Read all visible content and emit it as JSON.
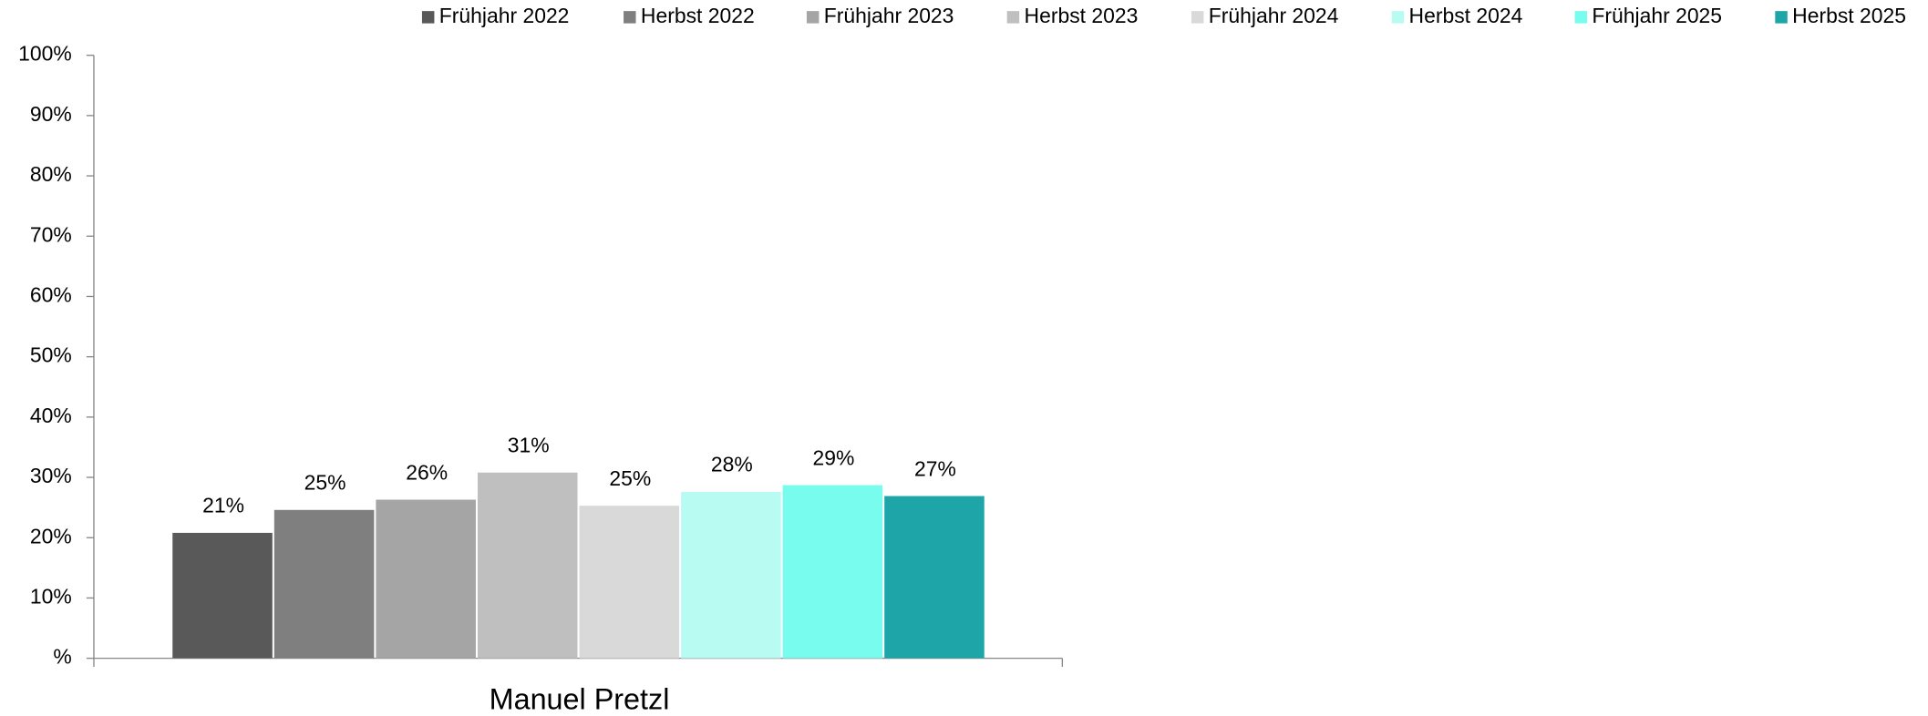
{
  "chart_data": {
    "type": "bar",
    "categories": [
      "Manuel Pretzl"
    ],
    "series": [
      {
        "name": "Frühjahr 2022",
        "color": "#595959",
        "values": [
          20.8
        ],
        "value_labels": [
          "21%"
        ]
      },
      {
        "name": "Herbst 2022",
        "color": "#7f7f7f",
        "values": [
          24.6
        ],
        "value_labels": [
          "25%"
        ]
      },
      {
        "name": "Frühjahr 2023",
        "color": "#a5a5a5",
        "values": [
          26.3
        ],
        "value_labels": [
          "26%"
        ]
      },
      {
        "name": "Herbst 2023",
        "color": "#bfbfbf",
        "values": [
          30.8
        ],
        "value_labels": [
          "31%"
        ]
      },
      {
        "name": "Frühjahr 2024",
        "color": "#d9d9d9",
        "values": [
          25.3
        ],
        "value_labels": [
          "25%"
        ]
      },
      {
        "name": "Herbst 2024",
        "color": "#b8fbf3",
        "values": [
          27.6
        ],
        "value_labels": [
          "28%"
        ]
      },
      {
        "name": "Frühjahr 2025",
        "color": "#77fcee",
        "values": [
          28.7
        ],
        "value_labels": [
          "29%"
        ]
      },
      {
        "name": "Herbst 2025",
        "color": "#1ea5a8",
        "values": [
          26.9
        ],
        "value_labels": [
          "27%"
        ]
      }
    ],
    "ylim": [
      0,
      100
    ],
    "yticks": [
      {
        "value": 0,
        "label": "%"
      },
      {
        "value": 10,
        "label": "10%"
      },
      {
        "value": 20,
        "label": "20%"
      },
      {
        "value": 30,
        "label": "30%"
      },
      {
        "value": 40,
        "label": "40%"
      },
      {
        "value": 50,
        "label": "50%"
      },
      {
        "value": 60,
        "label": "60%"
      },
      {
        "value": 70,
        "label": "70%"
      },
      {
        "value": 80,
        "label": "80%"
      },
      {
        "value": 90,
        "label": "90%"
      },
      {
        "value": 100,
        "label": "100%"
      }
    ],
    "legend": "top-right"
  }
}
